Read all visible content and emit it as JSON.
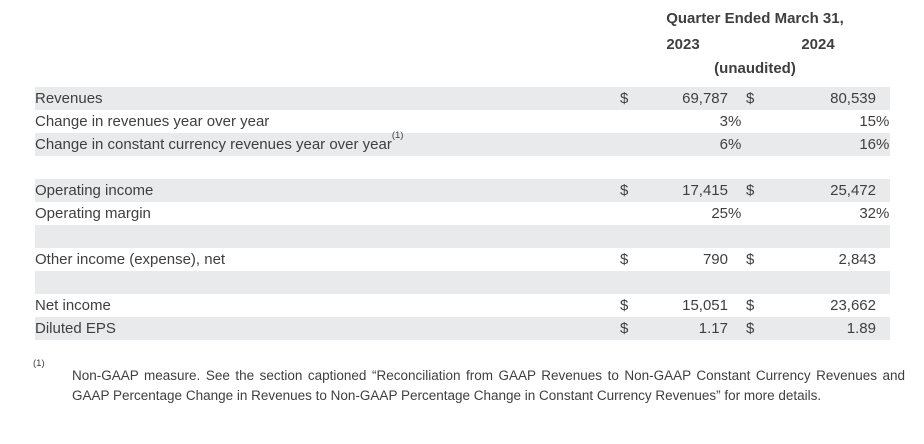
{
  "table": {
    "header": {
      "title": "Quarter Ended March 31,",
      "year1": "2023",
      "year2": "2024",
      "subtitle": "(unaudited)"
    },
    "rows": [
      {
        "label": "Revenues",
        "note": "",
        "shaded": true,
        "spacer": false,
        "cells": [
          {
            "cur": "$",
            "val": "69,787",
            "sfx": ""
          },
          {
            "cur": "$",
            "val": "80,539",
            "sfx": ""
          }
        ]
      },
      {
        "label": "Change in revenues year over year",
        "note": "",
        "shaded": false,
        "spacer": false,
        "cells": [
          {
            "cur": "",
            "val": "3",
            "sfx": "%"
          },
          {
            "cur": "",
            "val": "15",
            "sfx": "%"
          }
        ]
      },
      {
        "label": "Change in constant currency revenues year over year",
        "note": "(1)",
        "shaded": true,
        "spacer": false,
        "cells": [
          {
            "cur": "",
            "val": "6",
            "sfx": "%"
          },
          {
            "cur": "",
            "val": "16",
            "sfx": "%"
          }
        ]
      },
      {
        "label": "",
        "note": "",
        "shaded": false,
        "spacer": true,
        "cells": [
          {
            "cur": "",
            "val": "",
            "sfx": ""
          },
          {
            "cur": "",
            "val": "",
            "sfx": ""
          }
        ]
      },
      {
        "label": "Operating income",
        "note": "",
        "shaded": true,
        "spacer": false,
        "cells": [
          {
            "cur": "$",
            "val": "17,415",
            "sfx": ""
          },
          {
            "cur": "$",
            "val": "25,472",
            "sfx": ""
          }
        ]
      },
      {
        "label": "Operating margin",
        "note": "",
        "shaded": false,
        "spacer": false,
        "cells": [
          {
            "cur": "",
            "val": "25",
            "sfx": "%"
          },
          {
            "cur": "",
            "val": "32",
            "sfx": "%"
          }
        ]
      },
      {
        "label": "",
        "note": "",
        "shaded": true,
        "spacer": true,
        "cells": [
          {
            "cur": "",
            "val": "",
            "sfx": ""
          },
          {
            "cur": "",
            "val": "",
            "sfx": ""
          }
        ]
      },
      {
        "label": "Other income (expense), net",
        "note": "",
        "shaded": false,
        "spacer": false,
        "cells": [
          {
            "cur": "$",
            "val": "790",
            "sfx": ""
          },
          {
            "cur": "$",
            "val": "2,843",
            "sfx": ""
          }
        ]
      },
      {
        "label": "",
        "note": "",
        "shaded": true,
        "spacer": true,
        "cells": [
          {
            "cur": "",
            "val": "",
            "sfx": ""
          },
          {
            "cur": "",
            "val": "",
            "sfx": ""
          }
        ]
      },
      {
        "label": "Net income",
        "note": "",
        "shaded": false,
        "spacer": false,
        "cells": [
          {
            "cur": "$",
            "val": "15,051",
            "sfx": ""
          },
          {
            "cur": "$",
            "val": "23,662",
            "sfx": ""
          }
        ]
      },
      {
        "label": "Diluted EPS",
        "note": "",
        "shaded": true,
        "spacer": false,
        "cells": [
          {
            "cur": "$",
            "val": "1.17",
            "sfx": ""
          },
          {
            "cur": "$",
            "val": "1.89",
            "sfx": ""
          }
        ]
      }
    ]
  },
  "footnote": {
    "marker": "(1)",
    "text": "Non-GAAP measure. See the section captioned “Reconciliation from GAAP Revenues to Non-GAAP Constant Currency Revenues and GAAP Percentage Change in Revenues to Non-GAAP Percentage Change in Constant Currency Revenues” for more details."
  },
  "colors": {
    "row_shade": "#e9eaec",
    "text": "#3f3f41",
    "background": "#ffffff"
  }
}
